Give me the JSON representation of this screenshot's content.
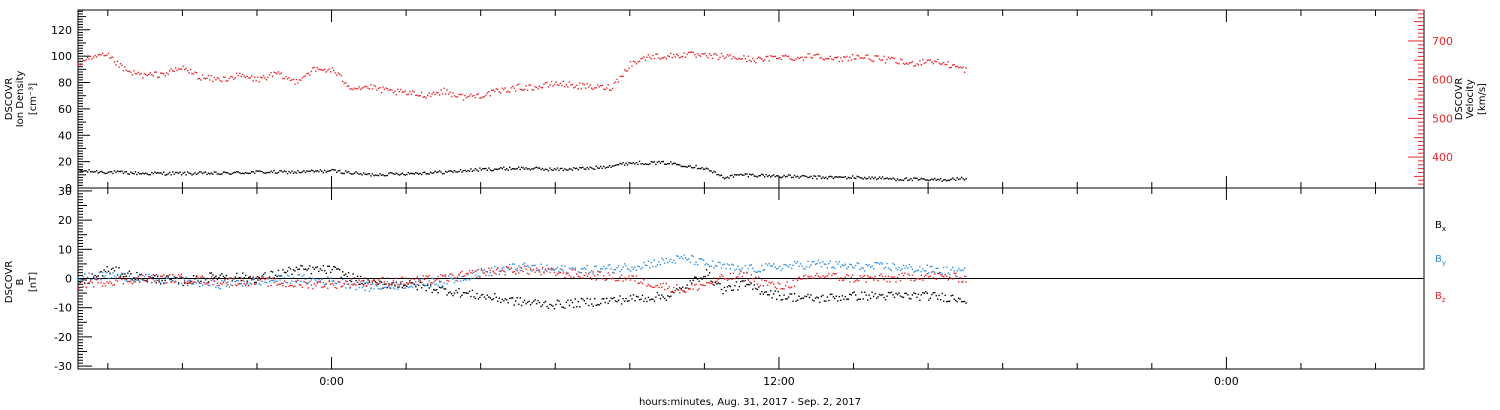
{
  "xlabel": "hours:minutes, Aug. 31, 2017 - Sep.  2, 2017",
  "x_tick_labels": [
    "0:00",
    "12:00",
    "0:00"
  ],
  "colors": {
    "black": "#000000",
    "red": "#e8262a",
    "blue": "#2f8fe0",
    "axis": "#000000"
  },
  "chart_data": [
    {
      "type": "scatter",
      "panel": "top",
      "left_axis": {
        "label_lines": [
          "DSCOVR",
          "Ion Density",
          "[cm⁻³]"
        ],
        "ylim": [
          0,
          135
        ],
        "ticks": [
          0,
          20,
          40,
          60,
          80,
          100,
          120
        ]
      },
      "right_axis": {
        "label_lines": [
          "DSCOVR",
          "Velocity",
          "[km/s]"
        ],
        "ylim": [
          320,
          780
        ],
        "ticks": [
          400,
          500,
          600,
          700
        ],
        "color": "#e8262a"
      },
      "xlim_hours": [
        -6.8,
        29.3
      ],
      "series": [
        {
          "name": "Ion Density",
          "axis": "left",
          "color": "#000000",
          "x": [
            -6.8,
            -6.0,
            -5.0,
            -4.0,
            -3.0,
            -2.0,
            -1.0,
            0.0,
            1.0,
            2.0,
            3.0,
            4.0,
            5.0,
            6.0,
            7.0,
            8.0,
            9.0,
            9.5,
            10.0,
            10.5,
            11.0,
            12.0,
            13.0,
            14.0,
            15.0,
            16.0,
            17.0
          ],
          "y": [
            13,
            12,
            11,
            11,
            11,
            12,
            12,
            13,
            10,
            11,
            12,
            14,
            15,
            14,
            15,
            19,
            19,
            17,
            15,
            8,
            10,
            9,
            8,
            8,
            7,
            6,
            7
          ]
        },
        {
          "name": "Velocity",
          "axis": "right",
          "color": "#e8262a",
          "x": [
            -6.8,
            -6.3,
            -6.0,
            -5.5,
            -5.0,
            -4.5,
            -4.0,
            -3.5,
            -3.0,
            -2.5,
            -2.0,
            -1.5,
            -1.0,
            -0.5,
            0.0,
            0.5,
            1.0,
            1.5,
            2.0,
            2.5,
            3.0,
            3.5,
            4.0,
            4.5,
            5.0,
            5.5,
            6.0,
            6.5,
            7.0,
            7.5,
            8.0,
            8.5,
            9.0,
            9.5,
            10.0,
            10.5,
            11.0,
            11.5,
            12.0,
            12.5,
            13.0,
            13.5,
            14.0,
            14.5,
            15.0,
            15.5,
            16.0,
            16.5,
            17.0
          ],
          "y": [
            640,
            660,
            660,
            620,
            610,
            615,
            630,
            605,
            600,
            610,
            600,
            615,
            595,
            625,
            625,
            580,
            580,
            570,
            565,
            560,
            570,
            555,
            560,
            570,
            580,
            580,
            590,
            585,
            580,
            580,
            640,
            660,
            660,
            665,
            660,
            660,
            655,
            650,
            660,
            655,
            665,
            650,
            660,
            655,
            650,
            640,
            650,
            640,
            625
          ]
        }
      ]
    },
    {
      "type": "scatter",
      "panel": "bottom",
      "left_axis": {
        "label_lines": [
          "DSCOVR",
          "B",
          "[nT]"
        ],
        "ylim": [
          -31,
          31
        ],
        "ticks": [
          -30,
          -20,
          -10,
          0,
          10,
          20,
          30
        ]
      },
      "xlim_hours": [
        -6.8,
        29.3
      ],
      "legend": [
        {
          "name": "B",
          "sub": "x",
          "color": "#000000"
        },
        {
          "name": "B",
          "sub": "y",
          "color": "#2f8fe0"
        },
        {
          "name": "B",
          "sub": "z",
          "color": "#e8262a"
        }
      ],
      "series": [
        {
          "name": "Bx",
          "color": "#000000",
          "x": [
            -6.8,
            -6.0,
            -5.0,
            -4.0,
            -3.0,
            -2.0,
            -1.0,
            0.0,
            1.0,
            2.0,
            3.0,
            4.0,
            5.0,
            6.0,
            7.0,
            8.0,
            9.0,
            9.5,
            10.0,
            10.5,
            11.0,
            12.0,
            13.0,
            14.0,
            15.0,
            16.0,
            17.0
          ],
          "y": [
            -2,
            3,
            0,
            -1,
            1,
            0,
            3,
            3,
            -2,
            -2,
            -4,
            -6,
            -8,
            -9,
            -8,
            -7,
            -6,
            -3,
            2,
            -4,
            -2,
            -6,
            -7,
            -6,
            -6,
            -6,
            -7
          ]
        },
        {
          "name": "By",
          "color": "#2f8fe0",
          "x": [
            -6.8,
            -6.0,
            -5.0,
            -4.0,
            -3.0,
            -2.0,
            -1.0,
            0.0,
            1.0,
            2.0,
            3.0,
            4.0,
            5.0,
            6.0,
            7.0,
            8.0,
            9.0,
            9.5,
            10.0,
            10.5,
            11.0,
            12.0,
            13.0,
            14.0,
            15.0,
            16.0,
            17.0
          ],
          "y": [
            0,
            1,
            0,
            -1,
            -2,
            -1,
            0,
            -1,
            -3,
            -2,
            -1,
            2,
            4,
            3,
            3,
            4,
            6,
            7,
            5,
            4,
            3,
            4,
            5,
            4,
            4,
            3,
            2
          ]
        },
        {
          "name": "Bz",
          "color": "#e8262a",
          "x": [
            -6.8,
            -6.0,
            -5.0,
            -4.0,
            -3.0,
            -2.0,
            -1.0,
            0.0,
            1.0,
            2.0,
            3.0,
            4.0,
            5.0,
            6.0,
            7.0,
            8.0,
            9.0,
            9.5,
            10.0,
            10.5,
            11.0,
            12.0,
            13.0,
            14.0,
            15.0,
            16.0,
            17.0
          ],
          "y": [
            -2,
            -1,
            0,
            0,
            -1,
            -1,
            -2,
            -2,
            -1,
            -1,
            0,
            2,
            3,
            2,
            1,
            0,
            -3,
            -4,
            -2,
            0,
            1,
            -3,
            1,
            0,
            0,
            1,
            0
          ]
        }
      ]
    }
  ]
}
